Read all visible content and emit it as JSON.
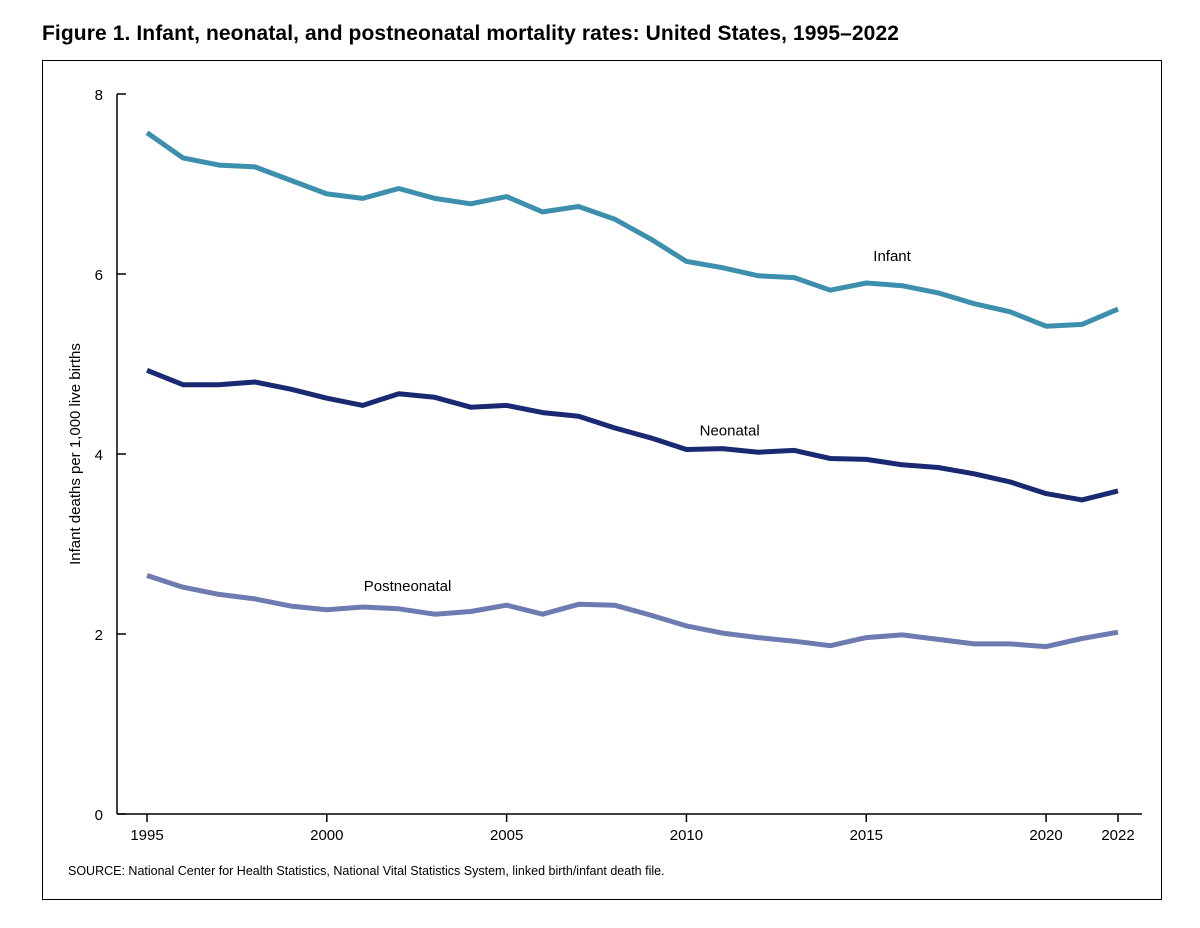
{
  "figure": {
    "title": "Figure 1. Infant, neonatal, and postneonatal mortality rates: United States, 1995–2022",
    "source": "SOURCE: National Center for Health Statistics, National Vital Statistics System, linked birth/infant death file."
  },
  "chart_data": {
    "type": "line",
    "title": "Figure 1. Infant, neonatal, and postneonatal mortality rates: United States, 1995–2022",
    "xlabel": "",
    "ylabel": "Infant deaths per 1,000 live births",
    "xlim": [
      1995,
      2022
    ],
    "ylim": [
      0,
      8
    ],
    "x_ticks": [
      1995,
      2000,
      2005,
      2010,
      2015,
      2020,
      2022
    ],
    "y_ticks": [
      0,
      2,
      4,
      6,
      8
    ],
    "grid": false,
    "legend": "none",
    "x": [
      1995,
      1996,
      1997,
      1998,
      1999,
      2000,
      2001,
      2002,
      2003,
      2004,
      2005,
      2006,
      2007,
      2008,
      2009,
      2010,
      2011,
      2012,
      2013,
      2014,
      2015,
      2016,
      2017,
      2018,
      2019,
      2020,
      2021,
      2022
    ],
    "series": [
      {
        "name": "Infant",
        "color": "#3d8fae",
        "values": [
          7.57,
          7.29,
          7.21,
          7.19,
          7.04,
          6.89,
          6.84,
          6.95,
          6.84,
          6.78,
          6.86,
          6.69,
          6.75,
          6.61,
          6.39,
          6.14,
          6.07,
          5.98,
          5.96,
          5.82,
          5.9,
          5.87,
          5.79,
          5.67,
          5.58,
          5.42,
          5.44,
          5.61
        ]
      },
      {
        "name": "Neonatal",
        "color": "#1a2a72",
        "values": [
          4.93,
          4.77,
          4.77,
          4.8,
          4.72,
          4.62,
          4.54,
          4.67,
          4.63,
          4.52,
          4.54,
          4.46,
          4.42,
          4.29,
          4.18,
          4.05,
          4.06,
          4.02,
          4.04,
          3.95,
          3.94,
          3.88,
          3.85,
          3.78,
          3.69,
          3.56,
          3.49,
          3.59
        ]
      },
      {
        "name": "Postneonatal",
        "color": "#6d7bb0",
        "values": [
          2.65,
          2.52,
          2.44,
          2.39,
          2.31,
          2.27,
          2.3,
          2.28,
          2.22,
          2.25,
          2.32,
          2.22,
          2.33,
          2.32,
          2.21,
          2.09,
          2.01,
          1.96,
          1.92,
          1.87,
          1.96,
          1.99,
          1.94,
          1.89,
          1.89,
          1.86,
          1.95,
          2.02
        ]
      }
    ]
  }
}
